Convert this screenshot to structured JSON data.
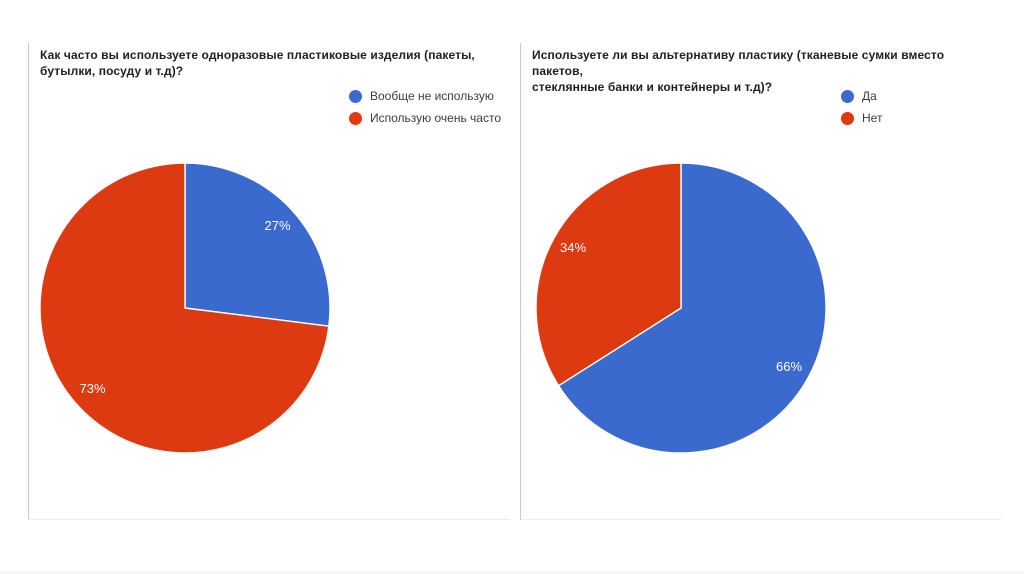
{
  "page": {
    "background": "#ffffff"
  },
  "colors": {
    "slice_blue": "#3a6acd",
    "slice_red": "#de3a12",
    "title_text": "#212121",
    "legend_text": "#3d3d3d",
    "percent_label_text": "#ffffff"
  },
  "chart_data": [
    {
      "type": "pie",
      "title": "Как часто вы используете одноразовые пластиковые изделия (пакеты, бутылки, посуду и т.д)?",
      "title_lines": [
        "Как часто вы используете одноразовые пластиковые изделия (пакеты,",
        "бутылки, посуду и т.д)?"
      ],
      "legend_position": "top-right",
      "start_angle_deg": 0,
      "direction": "clockwise",
      "slices": [
        {
          "label": "Вообще не использую",
          "value": 27,
          "percent_label": "27%",
          "color": "#3a6acd"
        },
        {
          "label": "Использую очень часто",
          "value": 73,
          "percent_label": "73%",
          "color": "#de3a12"
        }
      ]
    },
    {
      "type": "pie",
      "title": "Используете ли вы альтернативу пластику (тканевые сумки вместо пакетов, стеклянные банки и контейнеры и т.д)?",
      "title_lines": [
        "Используете ли вы альтернативу пластику (тканевые сумки вместо пакетов,",
        "стеклянные банки и контейнеры и т.д)?"
      ],
      "legend_position": "top-right",
      "start_angle_deg": 0,
      "direction": "clockwise",
      "slices": [
        {
          "label": "Да",
          "value": 66,
          "percent_label": "66%",
          "color": "#3a6acd"
        },
        {
          "label": "Нет",
          "value": 34,
          "percent_label": "34%",
          "color": "#de3a12"
        }
      ]
    }
  ]
}
